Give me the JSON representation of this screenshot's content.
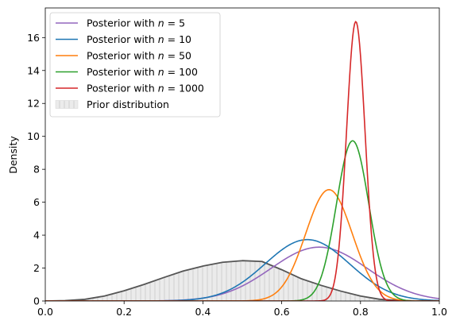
{
  "chart_data": {
    "type": "line",
    "title": "",
    "xlabel": "",
    "ylabel": "Density",
    "xlim": [
      0.0,
      1.0
    ],
    "ylim": [
      0,
      17.8
    ],
    "xticks": [
      "0.0",
      "0.2",
      "0.4",
      "0.6",
      "0.8",
      "1.0"
    ],
    "yticks": [
      "0",
      "2",
      "4",
      "6",
      "8",
      "10",
      "12",
      "14",
      "16"
    ],
    "grid": false,
    "legend_position": "top-left",
    "series": [
      {
        "name": "Posterior with n = 5",
        "label_prefix": "Posterior with ",
        "label_var": "n",
        "label_rest": " = 5",
        "color": "#9467bd",
        "kind": "normal",
        "mean": 0.695,
        "sd": 0.122
      },
      {
        "name": "Posterior with n = 10",
        "label_prefix": "Posterior with ",
        "label_var": "n",
        "label_rest": " = 10",
        "color": "#1f77b4",
        "kind": "normal",
        "mean": 0.665,
        "sd": 0.107
      },
      {
        "name": "Posterior with n = 50",
        "label_prefix": "Posterior with ",
        "label_var": "n",
        "label_rest": " = 50",
        "color": "#ff7f0e",
        "kind": "normal",
        "mean": 0.72,
        "sd": 0.059
      },
      {
        "name": "Posterior with n = 100",
        "label_prefix": "Posterior with ",
        "label_var": "n",
        "label_rest": " = 100",
        "color": "#2ca02c",
        "kind": "normal",
        "mean": 0.78,
        "sd": 0.041
      },
      {
        "name": "Posterior with n = 1000",
        "label_prefix": "Posterior with ",
        "label_var": "n",
        "label_rest": " = 1000",
        "color": "#d62728",
        "kind": "normal",
        "mean": 0.788,
        "sd": 0.0235
      }
    ],
    "prior": {
      "name": "Prior distribution",
      "fill_color": "#ebebeb",
      "hatch_color": "#c8c8c8",
      "line_color": "#555555",
      "x": [
        0.0,
        0.05,
        0.1,
        0.15,
        0.2,
        0.25,
        0.3,
        0.35,
        0.4,
        0.45,
        0.5,
        0.55,
        0.6,
        0.65,
        0.7,
        0.75,
        0.8,
        0.85,
        0.9,
        0.95,
        1.0
      ],
      "y": [
        0.0,
        0.02,
        0.1,
        0.3,
        0.62,
        1.0,
        1.42,
        1.82,
        2.12,
        2.35,
        2.45,
        2.4,
        1.9,
        1.35,
        0.95,
        0.6,
        0.3,
        0.1,
        0.03,
        0.0,
        0.0
      ]
    }
  }
}
